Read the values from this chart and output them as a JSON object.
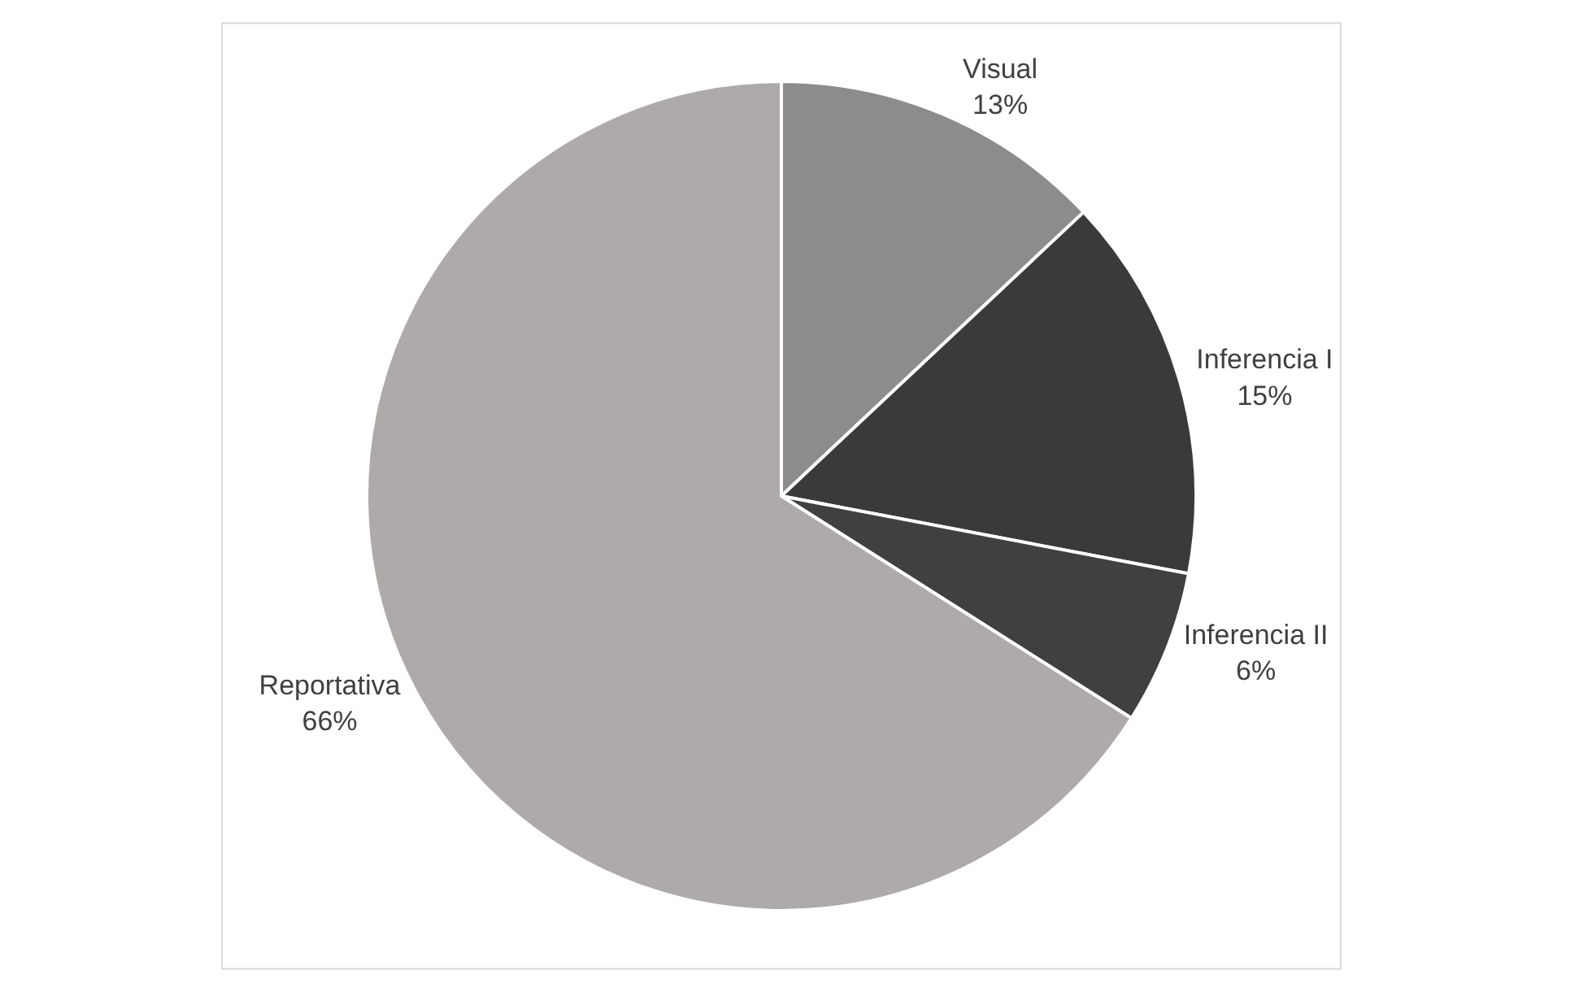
{
  "chart_data": {
    "type": "pie",
    "categories": [
      "Visual",
      "Inferencia I",
      "Inferencia II",
      "Reportativa"
    ],
    "values": [
      13,
      15,
      6,
      66
    ],
    "value_labels": [
      "13%",
      "15%",
      "6%",
      "66%"
    ],
    "colors": [
      "#8c8c8c",
      "#3a3a3a",
      "#404040",
      "#aeaaaa"
    ],
    "legend": false
  }
}
